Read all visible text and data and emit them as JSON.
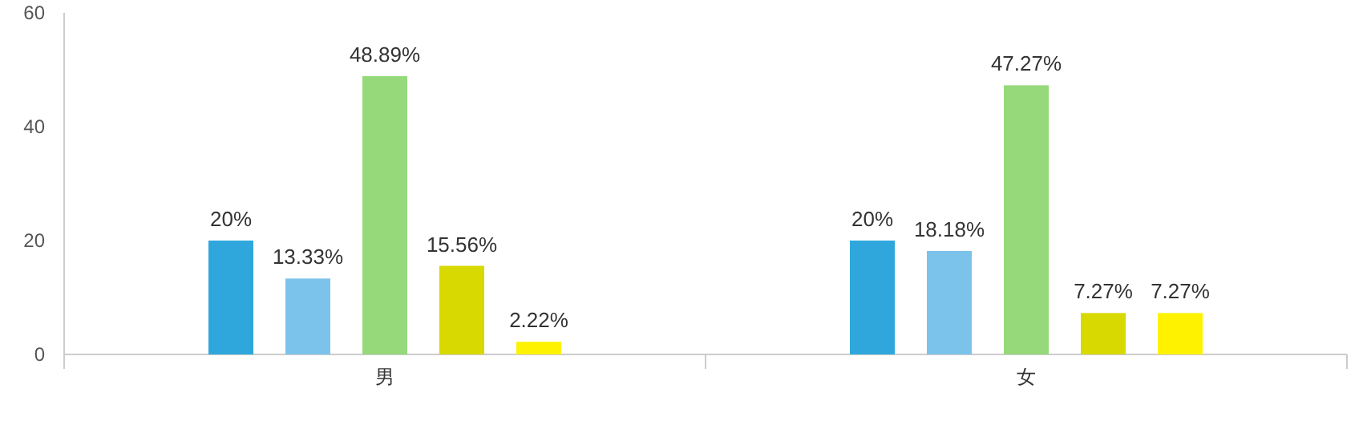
{
  "chart_data": {
    "type": "bar",
    "categories": [
      "男",
      "女"
    ],
    "series": [
      {
        "color": "#2fa7dc",
        "values": [
          20,
          20
        ],
        "value_labels": [
          "20%",
          "20%"
        ]
      },
      {
        "color": "#7cc3ec",
        "values": [
          13.33,
          18.18
        ],
        "value_labels": [
          "13.33%",
          "18.18%"
        ]
      },
      {
        "color": "#95d97a",
        "values": [
          48.89,
          47.27
        ],
        "value_labels": [
          "48.89%",
          "47.27%"
        ]
      },
      {
        "color": "#d7d900",
        "values": [
          15.56,
          7.27
        ],
        "value_labels": [
          "15.56%",
          "7.27%"
        ]
      },
      {
        "color": "#fff200",
        "values": [
          2.22,
          7.27
        ],
        "value_labels": [
          "2.22%",
          "7.27%"
        ]
      }
    ],
    "ylim": [
      0,
      60
    ],
    "yticks": [
      0,
      20,
      40,
      60
    ],
    "grid": false
  }
}
